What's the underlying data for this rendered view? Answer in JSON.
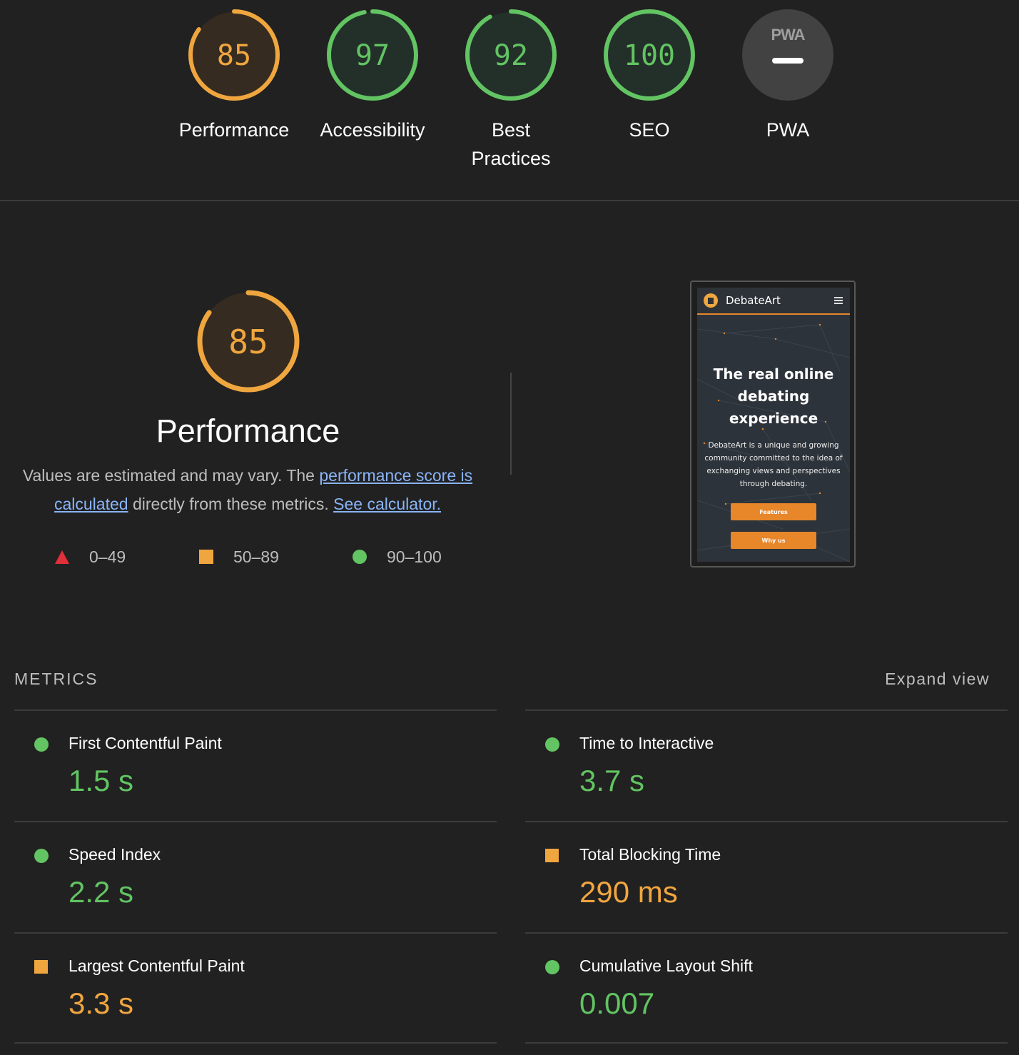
{
  "top_scores": [
    {
      "label": "Performance",
      "score": "85",
      "ratio": 0.85,
      "rating": "average"
    },
    {
      "label": "Accessibility",
      "score": "97",
      "ratio": 0.97,
      "rating": "pass"
    },
    {
      "label": "Best Practices",
      "score": "92",
      "ratio": 0.92,
      "rating": "pass"
    },
    {
      "label": "SEO",
      "score": "100",
      "ratio": 1.0,
      "rating": "pass"
    },
    {
      "label": "PWA",
      "badge": "PWA",
      "rating": "na"
    }
  ],
  "performance": {
    "score": "85",
    "ratio": 0.85,
    "title": "Performance",
    "desc_prefix": "Values are estimated and may vary. The ",
    "link_score": "performance score is calculated",
    "desc_middle": " directly from these metrics. ",
    "link_calculator": "See calculator."
  },
  "legend": [
    {
      "range": "0–49",
      "shape": "triangle",
      "color": "#e0303a"
    },
    {
      "range": "50–89",
      "shape": "square",
      "color": "#f0a63f"
    },
    {
      "range": "90–100",
      "shape": "circle",
      "color": "#62c462"
    }
  ],
  "screenshot": {
    "brand": "DebateArt",
    "headline": "The real online debating experience",
    "text": "DebateArt is a unique and growing community committed to the idea of exchanging views and perspectives through debating.",
    "button1": "Features",
    "button2": "Why us"
  },
  "metrics": {
    "title": "METRICS",
    "expand_label": "Expand view",
    "items": [
      {
        "name": "First Contentful Paint",
        "value": "1.5 s",
        "rating": "pass"
      },
      {
        "name": "Time to Interactive",
        "value": "3.7 s",
        "rating": "pass"
      },
      {
        "name": "Speed Index",
        "value": "2.2 s",
        "rating": "pass"
      },
      {
        "name": "Total Blocking Time",
        "value": "290 ms",
        "rating": "average"
      },
      {
        "name": "Largest Contentful Paint",
        "value": "3.3 s",
        "rating": "average"
      },
      {
        "name": "Cumulative Layout Shift",
        "value": "0.007",
        "rating": "pass"
      }
    ]
  },
  "colors": {
    "pass": "#62c462",
    "average": "#f0a63f",
    "fail": "#e0303a",
    "pass_bg": "#23302a",
    "average_bg": "#352b20",
    "background": "#212121"
  }
}
